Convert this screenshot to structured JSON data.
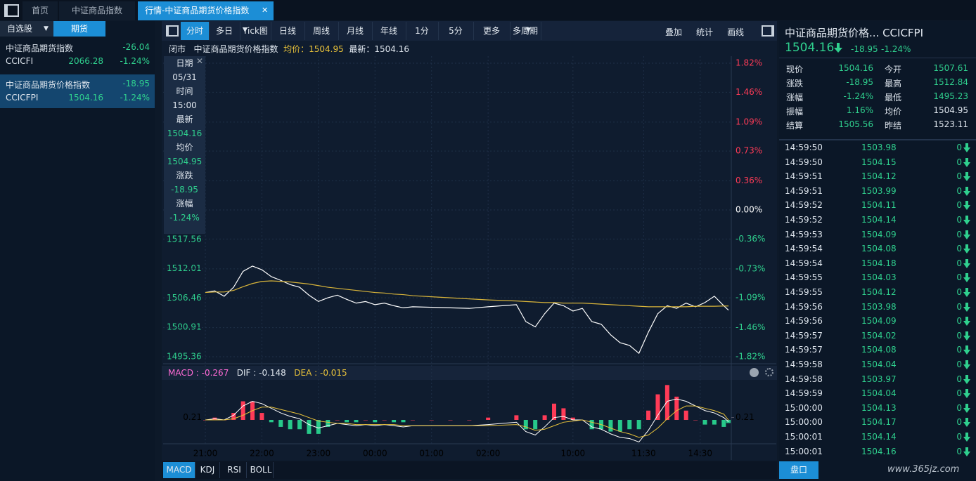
{
  "tabs": [
    "首页",
    "中证商品指数",
    "行情-中证商品期货价格指数"
  ],
  "sidebar": {
    "tabs": [
      "自选股",
      "期货"
    ],
    "items": [
      {
        "name": "中证商品期货指数",
        "change": "-26.04",
        "code": "CCICFI",
        "price": "2066.28",
        "pct": "-1.24%"
      },
      {
        "name": "中证商品期货价格指数",
        "change": "-18.95",
        "code": "CCICFPI",
        "price": "1504.16",
        "pct": "-1.24%"
      }
    ]
  },
  "toolbar": [
    "分时",
    "多日",
    "Tick图",
    "日线",
    "周线",
    "月线",
    "年线",
    "1分",
    "5分",
    "更多",
    "多周期"
  ],
  "toolbar_right": [
    "叠加",
    "统计",
    "画线"
  ],
  "chart_header": {
    "status": "闭市",
    "name": "中证商品期货价格指数",
    "avg": "均价：1504.95",
    "last": "最新：1504.16"
  },
  "tooltip": [
    "日期",
    "05/31",
    "时间",
    "15:00",
    "最新",
    "1504.16",
    "均价",
    "1504.95",
    "涨跌",
    "-18.95",
    "涨幅",
    "-1.24%"
  ],
  "macd_legend": [
    "MACD : -0.267",
    "DIF : -0.148",
    "DEA : -0.015"
  ],
  "indicator_tabs": [
    "MACD",
    "KDJ",
    "RSI",
    "BOLL"
  ],
  "chart_data": [
    {
      "type": "line",
      "x": [
        0,
        10,
        20,
        30,
        40,
        50,
        60,
        70,
        80,
        90,
        100,
        110,
        120,
        130,
        140,
        150,
        160,
        170,
        180,
        190,
        200,
        210,
        220,
        240,
        260,
        280,
        300,
        330,
        340,
        350,
        360,
        370,
        380,
        390,
        400,
        410,
        420,
        430,
        440,
        450,
        460,
        470,
        480,
        490,
        500,
        510,
        520,
        530,
        540,
        550,
        555
      ],
      "series": [
        {
          "color": "#ffffff",
          "values": [
            1507.5,
            1507.8,
            1506.8,
            1508.5,
            1511.5,
            1512.5,
            1511.8,
            1510.5,
            1509.8,
            1509.0,
            1508.5,
            1507.0,
            1505.8,
            1506.5,
            1507.0,
            1506.2,
            1505.5,
            1505.8,
            1505.2,
            1505.5,
            1505.0,
            1504.6,
            1504.8,
            1504.7,
            1504.6,
            1504.5,
            1504.8,
            1505.2,
            1502.0,
            1501.0,
            1503.5,
            1505.5,
            1505.0,
            1504.0,
            1504.5,
            1502.0,
            1501.5,
            1499.5,
            1498.0,
            1497.5,
            1496.0,
            1500.0,
            1503.5,
            1505.0,
            1504.5,
            1505.5,
            1504.8,
            1505.6,
            1506.8,
            1505.0,
            1504.16
          ]
        },
        {
          "color": "#d8b43a",
          "values": [
            1507.5,
            1507.6,
            1507.6,
            1507.9,
            1508.6,
            1509.2,
            1509.6,
            1509.7,
            1509.6,
            1509.5,
            1509.3,
            1509.1,
            1508.8,
            1508.5,
            1508.3,
            1508.1,
            1507.9,
            1507.7,
            1507.5,
            1507.4,
            1507.2,
            1507.1,
            1506.9,
            1506.7,
            1506.5,
            1506.3,
            1506.1,
            1505.9,
            1505.8,
            1505.7,
            1505.6,
            1505.6,
            1505.5,
            1505.5,
            1505.5,
            1505.4,
            1505.3,
            1505.2,
            1505.1,
            1505.0,
            1504.9,
            1504.8,
            1504.8,
            1504.8,
            1504.8,
            1504.8,
            1504.9,
            1504.9,
            1504.9,
            1504.95,
            1504.95
          ]
        }
      ],
      "xlim": [
        0,
        555
      ],
      "xticks": [
        {
          "value": 0,
          "label": "21:00"
        },
        {
          "value": 60,
          "label": "22:00"
        },
        {
          "value": 120,
          "label": "23:00"
        },
        {
          "value": 180,
          "label": "00:00"
        },
        {
          "value": 240,
          "label": "01:00"
        },
        {
          "value": 300,
          "label": "02:00"
        },
        {
          "value": 390,
          "label": "10:00"
        },
        {
          "value": 465,
          "label": "11:30"
        },
        {
          "value": 525,
          "label": "14:30"
        }
      ],
      "ylim": [
        1495.36,
        1550.86
      ],
      "yticks": [
        1495.36,
        1500.91,
        1506.46,
        1512.01,
        1517.56
      ],
      "y2lim": [
        -1.82,
        1.82
      ],
      "y2ticks": [
        {
          "value": 1.82,
          "label": "1.82%"
        },
        {
          "value": 1.46,
          "label": "1.46%"
        },
        {
          "value": 1.09,
          "label": "1.09%"
        },
        {
          "value": 0.73,
          "label": "0.73%"
        },
        {
          "value": 0.36,
          "label": "0.36%"
        },
        {
          "value": 0,
          "label": "0.00%"
        },
        {
          "value": -0.36,
          "label": "-0.36%"
        },
        {
          "value": -0.73,
          "label": "-0.73%"
        },
        {
          "value": -1.09,
          "label": "-1.09%"
        },
        {
          "value": -1.46,
          "label": "-1.46%"
        },
        {
          "value": -1.82,
          "label": "-1.82%"
        }
      ],
      "grid": true
    },
    {
      "type": "bar",
      "x": [
        0,
        10,
        20,
        30,
        40,
        50,
        60,
        70,
        80,
        90,
        100,
        110,
        120,
        130,
        140,
        150,
        160,
        170,
        180,
        190,
        200,
        210,
        220,
        240,
        260,
        280,
        300,
        330,
        340,
        350,
        360,
        370,
        380,
        390,
        400,
        410,
        420,
        430,
        440,
        450,
        460,
        470,
        480,
        490,
        500,
        510,
        520,
        530,
        540,
        550,
        555
      ],
      "up_color": "#ff3b57",
      "down_color": "#27c98a",
      "series": [
        {
          "type": "bar",
          "values": [
            0,
            0.2,
            0,
            0.6,
            1.6,
            1.6,
            0.6,
            -0.2,
            -0.6,
            -0.8,
            -0.8,
            -1.2,
            -1.2,
            -0.6,
            0,
            -0.2,
            -0.2,
            0,
            -0.2,
            0,
            -0.2,
            -0.2,
            0,
            0,
            0,
            0,
            0.2,
            0.4,
            -0.8,
            -0.8,
            0.4,
            1.4,
            1.0,
            0.2,
            0,
            -0.8,
            -0.8,
            -1.0,
            -1.0,
            -0.8,
            -0.8,
            0.8,
            2.2,
            3.0,
            2.0,
            0.8,
            0,
            -0.4,
            -0.4,
            -0.6,
            -0.267
          ]
        },
        {
          "type": "line",
          "color": "#ffffff",
          "values": [
            0,
            0.1,
            0,
            0.4,
            1.2,
            1.6,
            1.4,
            1.0,
            0.6,
            0.3,
            0.1,
            -0.4,
            -0.7,
            -0.5,
            -0.3,
            -0.4,
            -0.5,
            -0.4,
            -0.5,
            -0.4,
            -0.5,
            -0.6,
            -0.5,
            -0.5,
            -0.5,
            -0.5,
            -0.4,
            -0.2,
            -1.0,
            -1.3,
            -0.6,
            0.2,
            0.3,
            0.0,
            0.0,
            -0.6,
            -0.8,
            -1.2,
            -1.5,
            -1.6,
            -1.9,
            -0.9,
            0.4,
            1.6,
            1.8,
            1.6,
            1.2,
            0.8,
            0.6,
            0.2,
            -0.148
          ]
        },
        {
          "type": "line",
          "color": "#e8c23a",
          "values": [
            0,
            0,
            0,
            0.1,
            0.4,
            0.8,
            1.1,
            1.1,
            0.9,
            0.7,
            0.5,
            0.2,
            -0.1,
            -0.2,
            -0.3,
            -0.3,
            -0.4,
            -0.4,
            -0.4,
            -0.4,
            -0.4,
            -0.5,
            -0.5,
            -0.5,
            -0.5,
            -0.5,
            -0.5,
            -0.4,
            -0.6,
            -0.9,
            -0.8,
            -0.5,
            -0.2,
            -0.1,
            0.0,
            -0.2,
            -0.4,
            -0.7,
            -1.0,
            -1.2,
            -1.5,
            -1.3,
            -0.7,
            0.1,
            0.8,
            1.2,
            1.2,
            1.0,
            0.8,
            0.5,
            -0.015
          ]
        }
      ],
      "xlim": [
        0,
        555
      ],
      "ylim": [
        -3.2,
        3.2
      ],
      "yticks": [
        0.21
      ]
    }
  ],
  "quote": {
    "title": "中证商品期货价格... CCICFPI",
    "price": "1504.16",
    "change": "-18.95",
    "pct": "-1.24%",
    "stats": [
      [
        "现价",
        "1504.16",
        "今开",
        "1507.61"
      ],
      [
        "涨跌",
        "-18.95",
        "最高",
        "1512.84"
      ],
      [
        "涨幅",
        "-1.24%",
        "最低",
        "1495.23"
      ],
      [
        "振幅",
        "1.16%",
        "均价",
        "1504.95"
      ],
      [
        "结算",
        "1505.56",
        "昨结",
        "1523.11"
      ]
    ]
  },
  "trades": [
    [
      "14:59:50",
      "1503.98",
      "0"
    ],
    [
      "14:59:50",
      "1504.15",
      "0"
    ],
    [
      "14:59:51",
      "1504.12",
      "0"
    ],
    [
      "14:59:51",
      "1503.99",
      "0"
    ],
    [
      "14:59:52",
      "1504.11",
      "0"
    ],
    [
      "14:59:52",
      "1504.14",
      "0"
    ],
    [
      "14:59:53",
      "1504.09",
      "0"
    ],
    [
      "14:59:54",
      "1504.08",
      "0"
    ],
    [
      "14:59:54",
      "1504.18",
      "0"
    ],
    [
      "14:59:55",
      "1504.03",
      "0"
    ],
    [
      "14:59:55",
      "1504.12",
      "0"
    ],
    [
      "14:59:56",
      "1503.98",
      "0"
    ],
    [
      "14:59:56",
      "1504.09",
      "0"
    ],
    [
      "14:59:57",
      "1504.02",
      "0"
    ],
    [
      "14:59:57",
      "1504.08",
      "0"
    ],
    [
      "14:59:58",
      "1504.04",
      "0"
    ],
    [
      "14:59:58",
      "1503.97",
      "0"
    ],
    [
      "14:59:59",
      "1504.04",
      "0"
    ],
    [
      "15:00:00",
      "1504.13",
      "0"
    ],
    [
      "15:00:00",
      "1504.17",
      "0"
    ],
    [
      "15:00:01",
      "1504.14",
      "0"
    ],
    [
      "15:00:01",
      "1504.16",
      "0"
    ]
  ],
  "depth_button": "盘口",
  "watermark": "www.365jz.com"
}
